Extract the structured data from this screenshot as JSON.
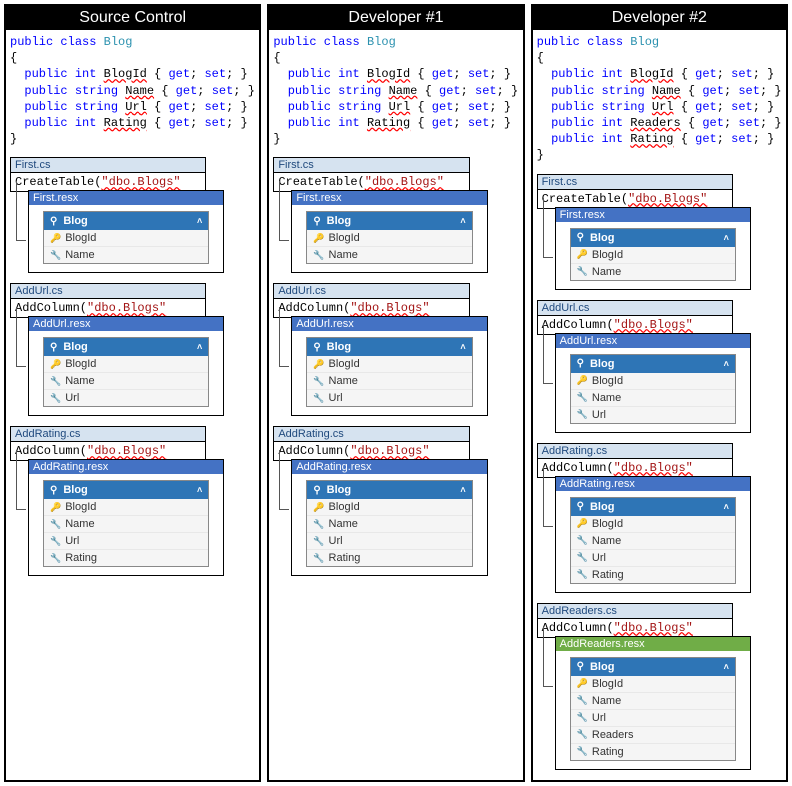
{
  "columns": [
    {
      "title": "Source Control",
      "code": {
        "class_name": "Blog",
        "props": [
          {
            "type": "int",
            "name": "BlogId"
          },
          {
            "type": "string",
            "name": "Name"
          },
          {
            "type": "string",
            "name": "Url"
          },
          {
            "type": "int",
            "name": "Rating"
          }
        ]
      },
      "migrations": [
        {
          "cs": "First.cs",
          "call": "CreateTable",
          "arg": "\"dbo.Blogs\"",
          "resx": "First.resx",
          "resx_green": false,
          "table": "Blog",
          "fields": [
            {
              "key": true,
              "name": "BlogId"
            },
            {
              "key": false,
              "name": "Name"
            }
          ]
        },
        {
          "cs": "AddUrl.cs",
          "call": "AddColumn",
          "arg": "\"dbo.Blogs\"",
          "resx": "AddUrl.resx",
          "resx_green": false,
          "table": "Blog",
          "fields": [
            {
              "key": true,
              "name": "BlogId"
            },
            {
              "key": false,
              "name": "Name"
            },
            {
              "key": false,
              "name": "Url"
            }
          ]
        },
        {
          "cs": "AddRating.cs",
          "call": "AddColumn",
          "arg": "\"dbo.Blogs\"",
          "resx": "AddRating.resx",
          "resx_green": false,
          "table": "Blog",
          "fields": [
            {
              "key": true,
              "name": "BlogId"
            },
            {
              "key": false,
              "name": "Name"
            },
            {
              "key": false,
              "name": "Url"
            },
            {
              "key": false,
              "name": "Rating"
            }
          ]
        }
      ]
    },
    {
      "title": "Developer #1",
      "code": {
        "class_name": "Blog",
        "props": [
          {
            "type": "int",
            "name": "BlogId"
          },
          {
            "type": "string",
            "name": "Name"
          },
          {
            "type": "string",
            "name": "Url"
          },
          {
            "type": "int",
            "name": "Rating"
          }
        ]
      },
      "migrations": [
        {
          "cs": "First.cs",
          "call": "CreateTable",
          "arg": "\"dbo.Blogs\"",
          "resx": "First.resx",
          "resx_green": false,
          "table": "Blog",
          "fields": [
            {
              "key": true,
              "name": "BlogId"
            },
            {
              "key": false,
              "name": "Name"
            }
          ]
        },
        {
          "cs": "AddUrl.cs",
          "call": "AddColumn",
          "arg": "\"dbo.Blogs\"",
          "resx": "AddUrl.resx",
          "resx_green": false,
          "table": "Blog",
          "fields": [
            {
              "key": true,
              "name": "BlogId"
            },
            {
              "key": false,
              "name": "Name"
            },
            {
              "key": false,
              "name": "Url"
            }
          ]
        },
        {
          "cs": "AddRating.cs",
          "call": "AddColumn",
          "arg": "\"dbo.Blogs\"",
          "resx": "AddRating.resx",
          "resx_green": false,
          "table": "Blog",
          "fields": [
            {
              "key": true,
              "name": "BlogId"
            },
            {
              "key": false,
              "name": "Name"
            },
            {
              "key": false,
              "name": "Url"
            },
            {
              "key": false,
              "name": "Rating"
            }
          ]
        }
      ]
    },
    {
      "title": "Developer #2",
      "code": {
        "class_name": "Blog",
        "props": [
          {
            "type": "int",
            "name": "BlogId"
          },
          {
            "type": "string",
            "name": "Name"
          },
          {
            "type": "string",
            "name": "Url"
          },
          {
            "type": "int",
            "name": "Readers"
          },
          {
            "type": "int",
            "name": "Rating"
          }
        ]
      },
      "migrations": [
        {
          "cs": "First.cs",
          "call": "CreateTable",
          "arg": "\"dbo.Blogs\"",
          "resx": "First.resx",
          "resx_green": false,
          "table": "Blog",
          "fields": [
            {
              "key": true,
              "name": "BlogId"
            },
            {
              "key": false,
              "name": "Name"
            }
          ]
        },
        {
          "cs": "AddUrl.cs",
          "call": "AddColumn",
          "arg": "\"dbo.Blogs\"",
          "resx": "AddUrl.resx",
          "resx_green": false,
          "table": "Blog",
          "fields": [
            {
              "key": true,
              "name": "BlogId"
            },
            {
              "key": false,
              "name": "Name"
            },
            {
              "key": false,
              "name": "Url"
            }
          ]
        },
        {
          "cs": "AddRating.cs",
          "call": "AddColumn",
          "arg": "\"dbo.Blogs\"",
          "resx": "AddRating.resx",
          "resx_green": false,
          "table": "Blog",
          "fields": [
            {
              "key": true,
              "name": "BlogId"
            },
            {
              "key": false,
              "name": "Name"
            },
            {
              "key": false,
              "name": "Url"
            },
            {
              "key": false,
              "name": "Rating"
            }
          ]
        },
        {
          "cs": "AddReaders.cs",
          "call": "AddColumn",
          "arg": "\"dbo.Blogs\"",
          "resx": "AddReaders.resx",
          "resx_green": true,
          "table": "Blog",
          "fields": [
            {
              "key": true,
              "name": "BlogId"
            },
            {
              "key": false,
              "name": "Name"
            },
            {
              "key": false,
              "name": "Url"
            },
            {
              "key": false,
              "name": "Readers"
            },
            {
              "key": false,
              "name": "Rating"
            }
          ]
        }
      ]
    }
  ],
  "syntax": {
    "public": "public",
    "class": "class",
    "get": "get",
    "set": "set"
  },
  "colors": {
    "keyword": "#0000ff",
    "classname": "#2b91af",
    "string": "#a31515",
    "header_bg": "#000000",
    "cs_header_bg": "#d6e3f0",
    "resx_header_bg": "#4472c4",
    "resx_green_bg": "#70ad47",
    "table_header_bg": "#2e75b6"
  }
}
